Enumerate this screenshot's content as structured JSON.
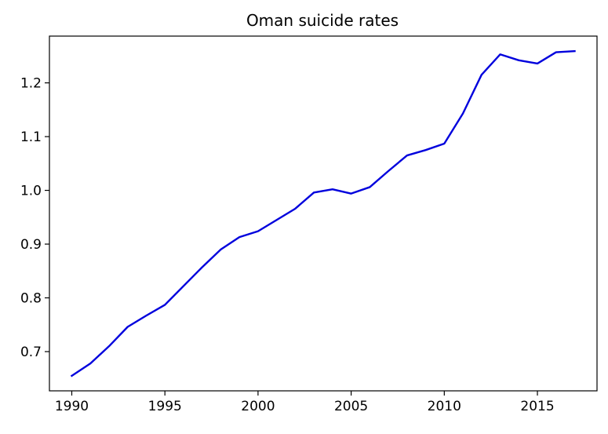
{
  "chart_data": {
    "type": "line",
    "title": "Oman suicide rates",
    "xlabel": "",
    "ylabel": "",
    "xlim": [
      1988.8,
      2018.2
    ],
    "ylim": [
      0.627,
      1.287
    ],
    "x_ticks": [
      "1990",
      "1995",
      "2000",
      "2005",
      "2010",
      "2015"
    ],
    "y_ticks": [
      "0.7",
      "0.8",
      "0.9",
      "1.0",
      "1.1",
      "1.2"
    ],
    "grid": false,
    "series": [
      {
        "color": "#0000dd",
        "x": [
          1990,
          1991,
          1992,
          1993,
          1994,
          1995,
          1996,
          1997,
          1998,
          1999,
          2000,
          2001,
          2002,
          2003,
          2004,
          2005,
          2006,
          2007,
          2008,
          2009,
          2010,
          2011,
          2012,
          2013,
          2014,
          2015,
          2016,
          2017
        ],
        "y": [
          0.655,
          0.678,
          0.71,
          0.746,
          0.767,
          0.787,
          0.822,
          0.857,
          0.89,
          0.913,
          0.924,
          0.945,
          0.966,
          0.996,
          1.002,
          0.994,
          1.006,
          1.036,
          1.065,
          1.075,
          1.087,
          1.143,
          1.215,
          1.253,
          1.242,
          1.236,
          1.257,
          1.259
        ]
      }
    ]
  }
}
